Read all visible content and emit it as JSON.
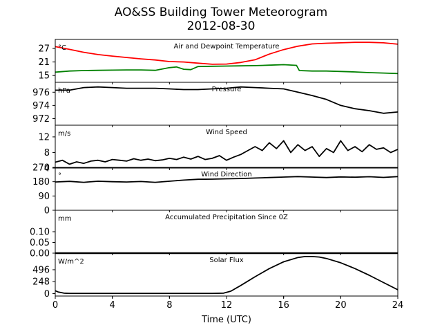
{
  "chart_data": {
    "type": "line",
    "title": "AO&SS Building Tower Meteorogram",
    "subtitle": "2012-08-30",
    "xlabel": "Time (UTC)",
    "x_ticks": [
      "0",
      "4",
      "8",
      "12",
      "16",
      "20",
      "24"
    ],
    "xlim": [
      0,
      24
    ],
    "grid": false,
    "panels": [
      {
        "id": "temperature",
        "label": "Air and Dewpoint Temperature",
        "unit": "°C",
        "ylim": [
          12,
          31
        ],
        "y_ticks": [
          15,
          21,
          27
        ],
        "series": [
          {
            "color": "#ff0000",
            "x": [
              0,
              1,
              2,
              3,
              4,
              5,
              6,
              7,
              8,
              9,
              10,
              11,
              12,
              13,
              14,
              15,
              16,
              17,
              18,
              19,
              20,
              21,
              22,
              23,
              24
            ],
            "y": [
              27.8,
              26.6,
              25.3,
              24.3,
              23.6,
              23.0,
              22.4,
              21.9,
              21.2,
              21.0,
              20.5,
              20.0,
              20.1,
              20.8,
              22.0,
              24.5,
              26.5,
              28.0,
              29.0,
              29.3,
              29.5,
              29.7,
              29.7,
              29.5,
              28.9
            ]
          },
          {
            "color": "#008000",
            "x": [
              0,
              1,
              2,
              3,
              4,
              5,
              6,
              7,
              8,
              8.5,
              9,
              9.5,
              10,
              11,
              12,
              13,
              14,
              15,
              16,
              16.9,
              17.1,
              18,
              19,
              20,
              21,
              22,
              23,
              24
            ],
            "y": [
              16.5,
              17.0,
              17.2,
              17.3,
              17.4,
              17.5,
              17.5,
              17.3,
              18.5,
              18.8,
              17.8,
              17.6,
              19.0,
              19.1,
              19.2,
              19.3,
              19.4,
              19.6,
              19.8,
              19.5,
              17.2,
              17.0,
              17.0,
              16.8,
              16.6,
              16.3,
              16.1,
              15.9
            ]
          }
        ]
      },
      {
        "id": "pressure",
        "label": "Pressure",
        "unit": "hPa",
        "ylim": [
          971.0,
          977.5
        ],
        "y_ticks": [
          972,
          974,
          976
        ],
        "series": [
          {
            "color": "#000000",
            "x": [
              0,
              1,
              2,
              3,
              4,
              5,
              6,
              7,
              8,
              9,
              10,
              11,
              12,
              13,
              14,
              15,
              16,
              17,
              18,
              19,
              20,
              21,
              22,
              23,
              24
            ],
            "y": [
              976.3,
              976.3,
              976.7,
              976.8,
              976.7,
              976.6,
              976.6,
              976.6,
              976.5,
              976.4,
              976.4,
              976.5,
              976.6,
              976.8,
              976.7,
              976.6,
              976.5,
              976.0,
              975.5,
              974.9,
              974.0,
              973.5,
              973.2,
              972.8,
              973.0
            ]
          }
        ]
      },
      {
        "id": "wind_speed",
        "label": "Wind Speed",
        "unit": "m/s",
        "ylim": [
          4,
          15
        ],
        "y_ticks": [
          4,
          8,
          12
        ],
        "series": [
          {
            "color": "#000000",
            "x": [
              0,
              0.5,
              1,
              1.5,
              2,
              2.5,
              3,
              3.5,
              4,
              4.5,
              5,
              5.5,
              6,
              6.5,
              7,
              7.5,
              8,
              8.5,
              9,
              9.5,
              10,
              10.5,
              11,
              11.5,
              12,
              12.5,
              13,
              13.5,
              14,
              14.5,
              15,
              15.5,
              16,
              16.5,
              17,
              17.5,
              18,
              18.5,
              19,
              19.5,
              20,
              20.5,
              21,
              21.5,
              22,
              22.5,
              23,
              23.5,
              24
            ],
            "y": [
              5.5,
              6.0,
              5.0,
              5.6,
              5.2,
              5.8,
              6.0,
              5.6,
              6.2,
              6.0,
              5.8,
              6.4,
              6.0,
              6.3,
              5.9,
              6.1,
              6.5,
              6.2,
              6.8,
              6.3,
              7.0,
              6.2,
              6.5,
              7.2,
              6.0,
              6.8,
              7.5,
              8.5,
              9.5,
              8.5,
              10.5,
              9.0,
              11.0,
              8.0,
              10.0,
              8.5,
              9.5,
              7.0,
              9.0,
              8.0,
              11.0,
              8.5,
              9.5,
              8.2,
              10.0,
              8.8,
              9.2,
              8.0,
              8.8
            ]
          }
        ]
      },
      {
        "id": "wind_direction",
        "label": "Wind Direction",
        "unit": "°",
        "ylim": [
          0,
          270
        ],
        "y_ticks": [
          0,
          90,
          180,
          270
        ],
        "series": [
          {
            "color": "#000000",
            "x": [
              0,
              1,
              2,
              3,
              4,
              5,
              6,
              7,
              8,
              9,
              10,
              11,
              12,
              13,
              14,
              15,
              16,
              17,
              18,
              19,
              20,
              21,
              22,
              23,
              24
            ],
            "y": [
              178,
              182,
              176,
              183,
              180,
              178,
              181,
              176,
              183,
              190,
              195,
              196,
              198,
              200,
              203,
              206,
              209,
              212,
              209,
              206,
              210,
              208,
              211,
              207,
              212
            ]
          }
        ]
      },
      {
        "id": "precipitation",
        "label": "Accumulated Precipitation Since 0Z",
        "unit": "mm",
        "ylim": [
          0,
          0.2
        ],
        "y_ticks": [
          0.0,
          0.05,
          0.1
        ],
        "y_tick_labels": [
          "0.00",
          "0.05",
          "0.10"
        ],
        "series": [
          {
            "color": "#000000",
            "x": [
              0,
              24
            ],
            "y": [
              0,
              0
            ]
          }
        ]
      },
      {
        "id": "solar_flux",
        "label": "Solar Flux",
        "unit": "W/m^2",
        "ylim": [
          -50,
          840
        ],
        "y_ticks": [
          0,
          248,
          496
        ],
        "series": [
          {
            "color": "#000000",
            "x": [
              0,
              0.2,
              0.6,
              1,
              4,
              8,
              11,
              11.8,
              12.3,
              13,
              14,
              15,
              16,
              17,
              17.5,
              18,
              18.5,
              19,
              20,
              21,
              22,
              23,
              24
            ],
            "y": [
              60,
              35,
              10,
              5,
              5,
              5,
              5,
              10,
              50,
              170,
              350,
              520,
              660,
              750,
              770,
              770,
              760,
              730,
              640,
              520,
              380,
              230,
              80
            ]
          }
        ]
      }
    ]
  }
}
